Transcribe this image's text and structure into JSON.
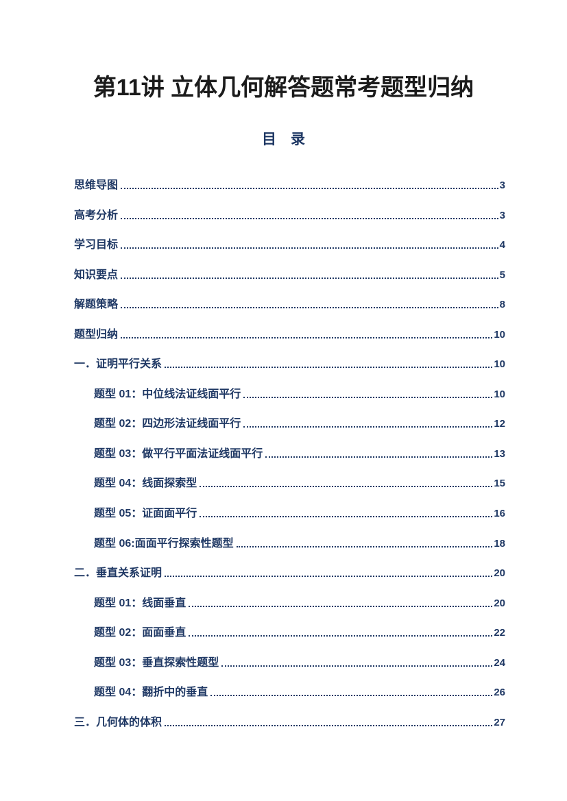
{
  "doc": {
    "title": "第11讲 立体几何解答题常考题型归纳",
    "toc_heading": "目　录"
  },
  "colors": {
    "accent_navy": "#1f3864",
    "title_black": "#1b1b1b"
  },
  "toc": {
    "entries": [
      {
        "label": "思维导图",
        "page": "3",
        "level": 0
      },
      {
        "label": "高考分析",
        "page": "3",
        "level": 0
      },
      {
        "label": "学习目标",
        "page": "4",
        "level": 0
      },
      {
        "label": "知识要点",
        "page": "5",
        "level": 0
      },
      {
        "label": "解题策略",
        "page": "8",
        "level": 0
      },
      {
        "label": "题型归纳",
        "page": "10",
        "level": 0
      },
      {
        "label": "一．证明平行关系",
        "page": "10",
        "level": 0
      },
      {
        "label": "题型 01：中位线法证线面平行",
        "page": "10",
        "level": 1
      },
      {
        "label": "题型 02：四边形法证线面平行",
        "page": "12",
        "level": 1
      },
      {
        "label": "题型 03：做平行平面法证线面平行",
        "page": "13",
        "level": 1
      },
      {
        "label": "题型 04：线面探索型",
        "page": "15",
        "level": 1
      },
      {
        "label": "题型 05：证面面平行",
        "page": "16",
        "level": 1
      },
      {
        "label": "题型 06:面面平行探索性题型",
        "page": "18",
        "level": 1
      },
      {
        "label": "二．垂直关系证明",
        "page": "20",
        "level": 0
      },
      {
        "label": "题型 01：线面垂直",
        "page": "20",
        "level": 1
      },
      {
        "label": "题型 02：面面垂直",
        "page": "22",
        "level": 1
      },
      {
        "label": "题型 03：垂直探索性题型",
        "page": "24",
        "level": 1
      },
      {
        "label": "题型 04：翻折中的垂直",
        "page": "26",
        "level": 1
      },
      {
        "label": "三．几何体的体积",
        "page": "27",
        "level": 0
      }
    ]
  }
}
